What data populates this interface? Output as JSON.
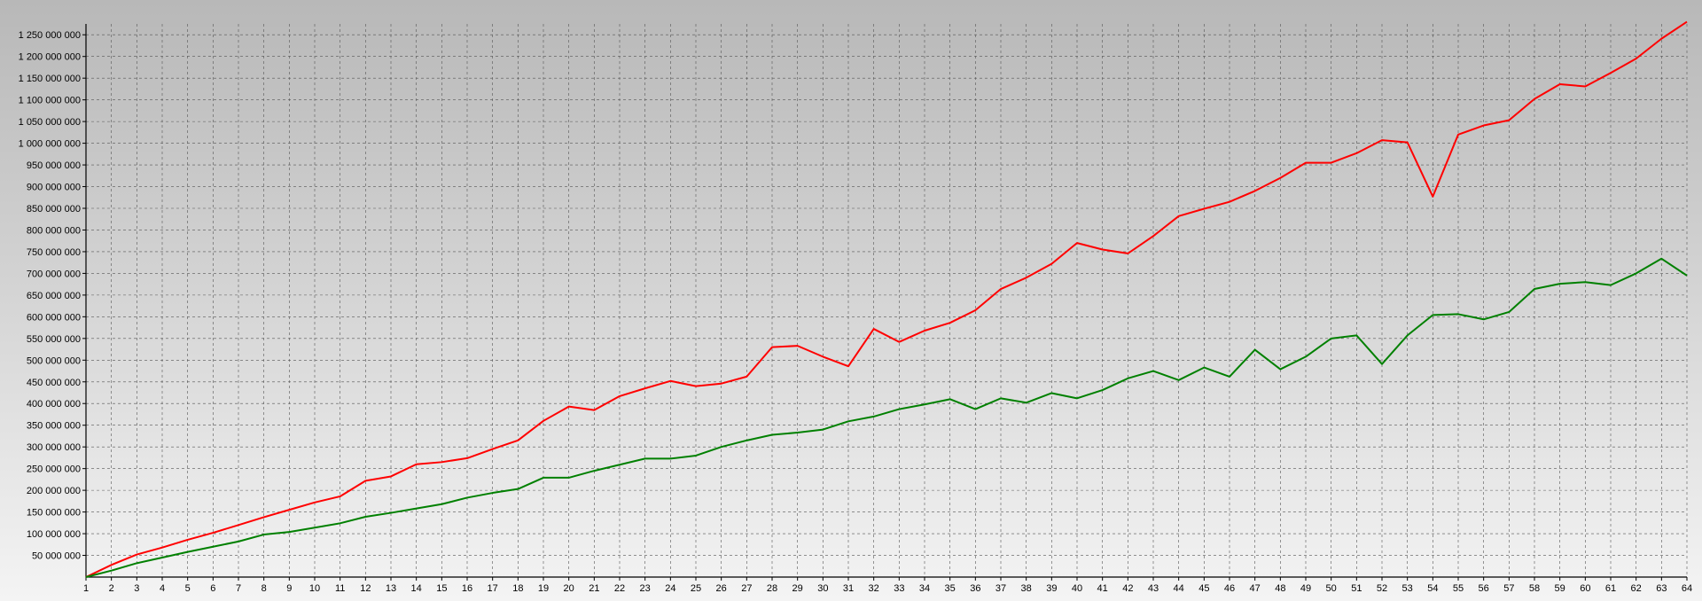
{
  "chart_data": {
    "type": "line",
    "title": "",
    "xlabel": "",
    "ylabel": "",
    "x": [
      1,
      2,
      3,
      4,
      5,
      6,
      7,
      8,
      9,
      10,
      11,
      12,
      13,
      14,
      15,
      16,
      17,
      18,
      19,
      20,
      21,
      22,
      23,
      24,
      25,
      26,
      27,
      28,
      29,
      30,
      31,
      32,
      33,
      34,
      35,
      36,
      37,
      38,
      39,
      40,
      41,
      42,
      43,
      44,
      45,
      46,
      47,
      48,
      49,
      50,
      51,
      52,
      53,
      54,
      55,
      56,
      57,
      58,
      59,
      60,
      61,
      62,
      63,
      64
    ],
    "xlim": [
      1,
      64
    ],
    "ylim": [
      0,
      1275000000
    ],
    "ytick_step": 50000000,
    "y_tick_labels": [
      "50 000 000",
      "100 000 000",
      "150 000 000",
      "200 000 000",
      "250 000 000",
      "300 000 000",
      "350 000 000",
      "400 000 000",
      "450 000 000",
      "500 000 000",
      "550 000 000",
      "600 000 000",
      "650 000 000",
      "700 000 000",
      "750 000 000",
      "800 000 000",
      "850 000 000",
      "900 000 000",
      "950 000 000",
      "1 000 000 000",
      "1 050 000 000",
      "1 100 000 000",
      "1 150 000 000",
      "1 200 000 000",
      "1 250 000 000"
    ],
    "grid": true,
    "legend": "none",
    "series": [
      {
        "color": "#ff0000",
        "values": [
          0,
          28000000,
          52000000,
          68000000,
          86000000,
          102000000,
          120000000,
          138000000,
          155000000,
          172000000,
          186000000,
          222000000,
          232000000,
          260000000,
          265000000,
          274000000,
          295000000,
          315000000,
          360000000,
          393000000,
          385000000,
          417000000,
          435000000,
          452000000,
          440000000,
          446000000,
          462000000,
          530000000,
          533000000,
          508000000,
          486000000,
          572000000,
          542000000,
          568000000,
          586000000,
          615000000,
          664000000,
          690000000,
          722000000,
          770000000,
          755000000,
          746000000,
          786000000,
          832000000,
          849000000,
          865000000,
          890000000,
          920000000,
          955000000,
          955000000,
          977000000,
          1007000000,
          1002000000,
          877000000,
          1020000000,
          1041000000,
          1053000000,
          1102000000,
          1136000000,
          1131000000,
          1162000000,
          1195000000,
          1241000000,
          1280000000
        ]
      },
      {
        "color": "#008000",
        "values": [
          0,
          15000000,
          32000000,
          45000000,
          58000000,
          70000000,
          82000000,
          98000000,
          104000000,
          114000000,
          124000000,
          139000000,
          148000000,
          158000000,
          168000000,
          183000000,
          194000000,
          203000000,
          229000000,
          229000000,
          245000000,
          259000000,
          273000000,
          273000000,
          280000000,
          300000000,
          315000000,
          328000000,
          333000000,
          340000000,
          359000000,
          370000000,
          387000000,
          398000000,
          410000000,
          387000000,
          412000000,
          402000000,
          424000000,
          412000000,
          431000000,
          458000000,
          475000000,
          454000000,
          483000000,
          462000000,
          524000000,
          479000000,
          508000000,
          550000000,
          557000000,
          491000000,
          557000000,
          604000000,
          606000000,
          594000000,
          611000000,
          664000000,
          676000000,
          680000000,
          673000000,
          700000000,
          734000000,
          695000000
        ]
      }
    ]
  }
}
